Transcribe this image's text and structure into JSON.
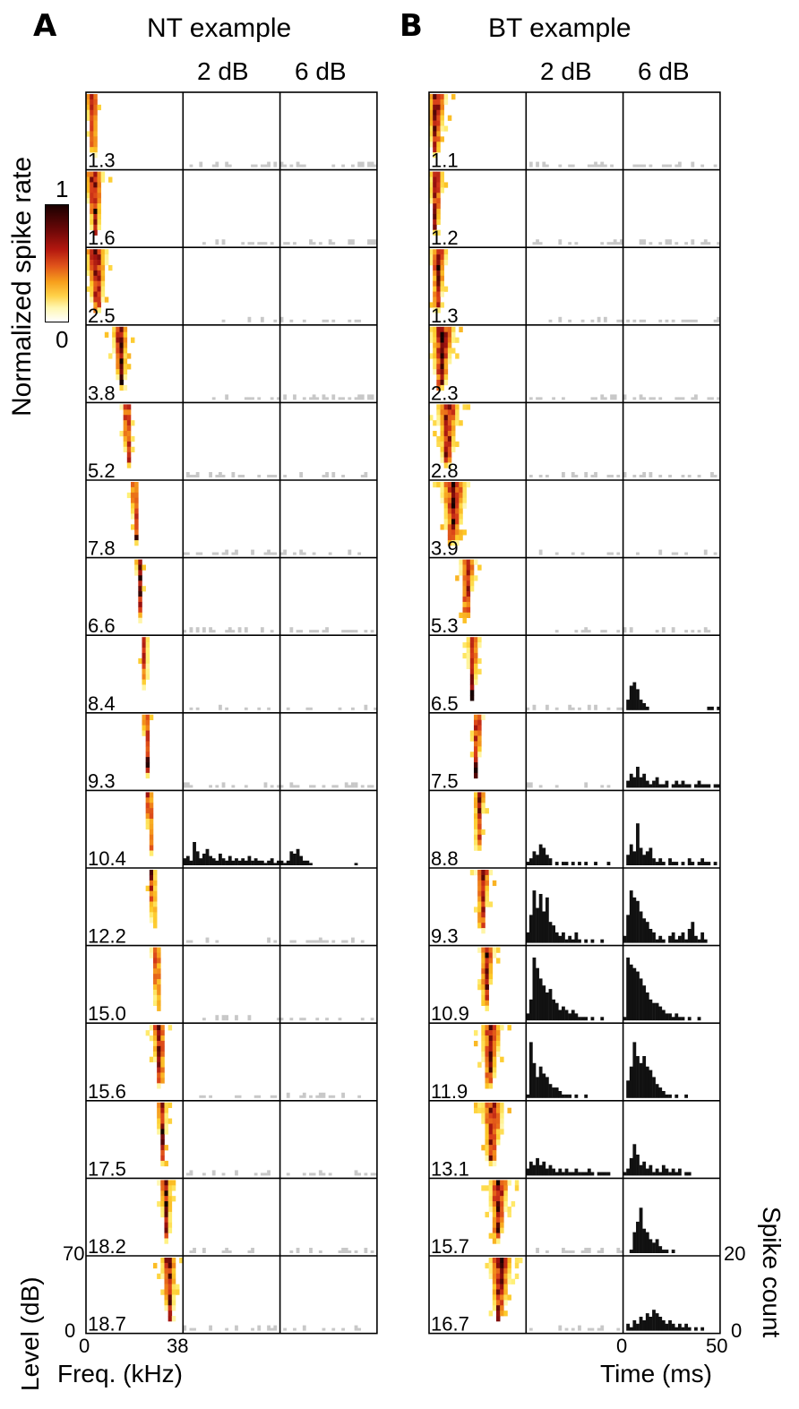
{
  "panels": [
    {
      "letter": "A",
      "title": "NT example",
      "col_labels": [
        "2 dB",
        "6 dB"
      ],
      "row_labels": [
        "1.3",
        "1.6",
        "2.5",
        "3.8",
        "5.2",
        "7.8",
        "6.6",
        "8.4",
        "9.3",
        "10.4",
        "12.2",
        "15.0",
        "15.6",
        "17.5",
        "18.2",
        "18.7"
      ]
    },
    {
      "letter": "B",
      "title": "BT example",
      "col_labels": [
        "2 dB",
        "6 dB"
      ],
      "row_labels": [
        "1.1",
        "1.2",
        "1.3",
        "2.3",
        "2.8",
        "3.9",
        "5.3",
        "6.5",
        "7.5",
        "8.8",
        "9.3",
        "10.9",
        "11.9",
        "13.1",
        "15.7",
        "16.7"
      ]
    }
  ],
  "colorbar": {
    "label": "Normalized spike rate",
    "max_label": "1",
    "min_label": "0"
  },
  "axes": {
    "level_label": "Level (dB)",
    "level_max": "70",
    "level_min": "0",
    "freq_label": "Freq. (kHz)",
    "freq_min": "0",
    "freq_max": "38",
    "time_label": "Time (ms)",
    "time_min": "0",
    "time_max": "50",
    "count_label": "Spike count",
    "count_max": "20",
    "count_min": "0"
  },
  "chart_data": [
    {
      "type": "heatmap",
      "panel": "A",
      "description_key": "NT example frequency-response maps",
      "x_range_khz": [
        0,
        38
      ],
      "y_range_db": [
        0,
        70
      ],
      "colorscale_range": [
        0,
        1
      ],
      "row_values": [
        1.3,
        1.6,
        2.5,
        3.8,
        5.2,
        7.8,
        6.6,
        8.4,
        9.3,
        10.4,
        12.2,
        15.0,
        15.6,
        17.5,
        18.2,
        18.7
      ],
      "tuning_center_fraction": [
        0.06,
        0.08,
        0.1,
        0.35,
        0.42,
        0.5,
        0.55,
        0.6,
        0.62,
        0.65,
        0.68,
        0.72,
        0.75,
        0.78,
        0.82,
        0.85
      ],
      "tuning_width_fraction": [
        0.12,
        0.18,
        0.22,
        0.16,
        0.1,
        0.08,
        0.07,
        0.07,
        0.07,
        0.08,
        0.08,
        0.09,
        0.14,
        0.1,
        0.12,
        0.15
      ]
    },
    {
      "type": "bar",
      "panel": "A",
      "x_range_ms": [
        0,
        50
      ],
      "y_range_count": [
        0,
        20
      ],
      "highlighted_row_index": 9,
      "series": [
        {
          "name": "2 dB",
          "row": 9,
          "values": [
            3,
            4,
            2,
            10,
            6,
            3,
            5,
            7,
            4,
            3,
            2,
            5,
            3,
            2,
            4,
            2,
            3,
            2,
            3,
            2,
            4,
            2,
            3,
            2,
            2,
            1,
            2,
            3,
            1,
            2
          ]
        },
        {
          "name": "6 dB",
          "row": 9,
          "values": [
            2,
            1,
            2,
            6,
            5,
            7,
            4,
            2,
            2,
            1,
            0,
            0,
            0,
            0,
            0,
            0,
            0,
            0,
            0,
            0,
            0,
            0,
            0,
            1,
            0,
            0,
            0,
            0,
            0,
            0
          ]
        }
      ]
    },
    {
      "type": "heatmap",
      "panel": "B",
      "description_key": "BT example frequency-response maps",
      "x_range_khz": [
        0,
        38
      ],
      "y_range_db": [
        0,
        70
      ],
      "colorscale_range": [
        0,
        1
      ],
      "row_values": [
        1.1,
        1.2,
        1.3,
        2.3,
        2.8,
        3.9,
        5.3,
        6.5,
        7.5,
        8.8,
        9.3,
        10.9,
        11.9,
        13.1,
        15.7,
        16.7
      ],
      "tuning_center_fraction": [
        0.08,
        0.08,
        0.1,
        0.14,
        0.2,
        0.26,
        0.4,
        0.46,
        0.5,
        0.52,
        0.56,
        0.6,
        0.64,
        0.66,
        0.72,
        0.74
      ],
      "tuning_width_fraction": [
        0.18,
        0.14,
        0.16,
        0.24,
        0.22,
        0.26,
        0.14,
        0.12,
        0.1,
        0.1,
        0.14,
        0.14,
        0.2,
        0.22,
        0.2,
        0.22
      ]
    },
    {
      "type": "bar",
      "panel": "B",
      "x_range_ms": [
        0,
        50
      ],
      "y_range_count": [
        0,
        20
      ],
      "responsive_rows_6dB": [
        7,
        8,
        9,
        10,
        11,
        12,
        13,
        14,
        15
      ],
      "responsive_rows_2dB": [
        9,
        10,
        11,
        12,
        13
      ],
      "series": [
        {
          "name": "row 7 (6.5) 6 dB",
          "values": [
            0,
            3,
            7,
            8,
            6,
            3,
            2,
            1,
            0,
            0,
            0,
            0,
            0,
            0,
            0,
            0,
            0,
            0,
            0,
            0,
            0,
            0,
            0,
            0,
            0,
            0,
            1,
            1,
            0,
            1
          ]
        },
        {
          "name": "row 8 (7.5) 6 dB",
          "values": [
            0,
            2,
            4,
            3,
            6,
            3,
            4,
            2,
            1,
            2,
            3,
            1,
            1,
            2,
            0,
            1,
            2,
            1,
            2,
            1,
            1,
            0,
            1,
            2,
            1,
            1,
            1,
            0,
            1,
            1
          ]
        },
        {
          "name": "row 9 (8.8) 2 dB",
          "values": [
            1,
            2,
            4,
            3,
            6,
            5,
            3,
            2,
            0,
            1,
            0,
            1,
            1,
            0,
            1,
            0,
            1,
            0,
            1,
            0,
            0,
            1,
            0,
            0,
            0,
            1,
            0,
            0,
            0,
            0
          ]
        },
        {
          "name": "row 9 (8.8) 6 dB",
          "values": [
            0,
            3,
            6,
            4,
            12,
            5,
            3,
            4,
            5,
            2,
            1,
            2,
            1,
            0,
            2,
            1,
            1,
            0,
            1,
            0,
            2,
            1,
            0,
            1,
            2,
            1,
            1,
            0,
            1,
            0
          ]
        },
        {
          "name": "row 10 (9.3) 2 dB",
          "values": [
            3,
            8,
            15,
            10,
            14,
            9,
            13,
            6,
            5,
            3,
            2,
            3,
            1,
            2,
            1,
            3,
            1,
            0,
            1,
            0,
            1,
            0,
            0,
            1,
            0,
            0,
            0,
            0,
            0,
            0
          ]
        },
        {
          "name": "row 10 (9.3) 6 dB",
          "values": [
            2,
            8,
            15,
            13,
            12,
            9,
            7,
            6,
            4,
            3,
            1,
            2,
            1,
            0,
            2,
            3,
            1,
            2,
            3,
            1,
            4,
            6,
            2,
            1,
            3,
            1,
            0,
            0,
            0,
            0
          ]
        },
        {
          "name": "row 11 (10.9) 2 dB",
          "values": [
            2,
            6,
            18,
            15,
            12,
            10,
            8,
            9,
            6,
            5,
            3,
            4,
            3,
            2,
            3,
            2,
            1,
            1,
            1,
            0,
            1,
            0,
            0,
            1,
            0,
            0,
            0,
            0,
            0,
            0
          ]
        },
        {
          "name": "row 11 (10.9) 6 dB",
          "values": [
            1,
            18,
            16,
            15,
            14,
            12,
            10,
            8,
            6,
            5,
            5,
            4,
            3,
            2,
            2,
            1,
            2,
            1,
            1,
            0,
            1,
            0,
            0,
            1,
            0,
            0,
            0,
            0,
            0,
            0
          ]
        },
        {
          "name": "row 12 (11.9) 2 dB",
          "values": [
            1,
            16,
            10,
            6,
            9,
            7,
            6,
            4,
            3,
            3,
            2,
            1,
            1,
            1,
            0,
            1,
            0,
            0,
            1,
            0,
            0,
            0,
            0,
            0,
            0,
            0,
            0,
            0,
            0,
            0
          ]
        },
        {
          "name": "row 12 (11.9) 6 dB",
          "values": [
            0,
            5,
            9,
            16,
            12,
            10,
            12,
            9,
            8,
            6,
            4,
            3,
            2,
            1,
            1,
            0,
            1,
            0,
            0,
            1,
            0,
            0,
            0,
            0,
            0,
            0,
            0,
            0,
            0,
            0
          ]
        },
        {
          "name": "row 13 (13.1) 2 dB",
          "values": [
            2,
            4,
            3,
            5,
            3,
            4,
            2,
            3,
            2,
            1,
            2,
            1,
            2,
            1,
            1,
            2,
            1,
            1,
            1,
            2,
            1,
            0,
            1,
            1,
            1,
            1,
            0,
            0,
            0,
            0
          ]
        },
        {
          "name": "row 13 (13.1) 6 dB",
          "values": [
            1,
            2,
            5,
            9,
            6,
            3,
            4,
            2,
            3,
            1,
            2,
            1,
            3,
            2,
            1,
            2,
            1,
            2,
            0,
            1,
            1,
            0,
            0,
            0,
            0,
            0,
            0,
            0,
            0,
            0
          ]
        },
        {
          "name": "row 14 (15.7) 6 dB",
          "values": [
            0,
            0,
            1,
            6,
            9,
            13,
            7,
            6,
            4,
            3,
            4,
            2,
            1,
            1,
            0,
            1,
            0,
            0,
            0,
            0,
            0,
            0,
            0,
            0,
            0,
            0,
            0,
            0,
            0,
            0
          ]
        },
        {
          "name": "row 15 (16.7) 6 dB",
          "values": [
            0,
            2,
            1,
            3,
            2,
            4,
            3,
            5,
            4,
            6,
            5,
            4,
            3,
            2,
            3,
            2,
            1,
            2,
            1,
            2,
            1,
            0,
            1,
            0,
            1,
            0,
            0,
            0,
            0,
            0
          ]
        }
      ]
    }
  ],
  "colors": {
    "response_bar": "#111111",
    "nonresponse_bar": "#c8c8c8",
    "frame": "#000000"
  }
}
